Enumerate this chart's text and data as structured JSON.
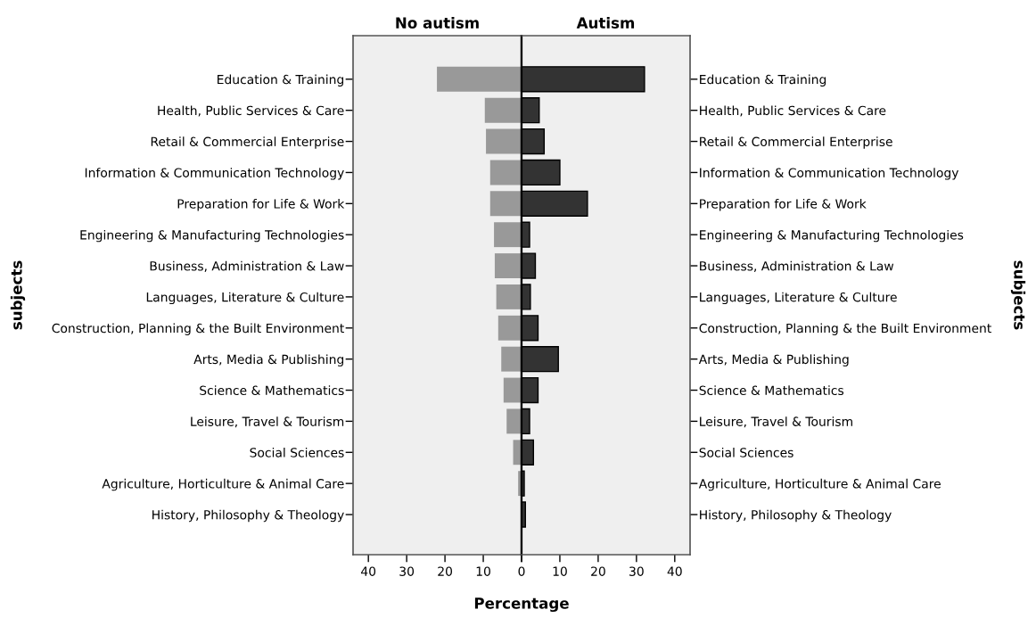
{
  "chart_data": [
    {
      "type": "bar",
      "orientation": "horizontal",
      "title": "No autism",
      "ylabel": "subjects",
      "xlabel": "Percentage",
      "categories": [
        "Education & Training",
        "Health, Public Services & Care",
        "Retail & Commercial Enterprise",
        "Information & Communication Technology",
        "Preparation for Life & Work",
        "Engineering & Manufacturing Technologies",
        "Business, Administration & Law",
        "Languages, Literature & Culture",
        "Construction, Planning & the Built Environment",
        "Arts, Media & Publishing",
        "Science & Mathematics",
        "Leisure, Travel & Tourism",
        "Social Sciences",
        "Agriculture, Horticulture & Animal Care",
        "History, Philosophy & Theology"
      ],
      "values": [
        22.1,
        9.6,
        9.3,
        8.2,
        8.2,
        7.2,
        7.0,
        6.6,
        6.1,
        5.3,
        4.7,
        3.9,
        2.2,
        0.9,
        null
      ],
      "color": "#999999",
      "xlim": [
        44,
        0
      ],
      "xticks": [
        40,
        30,
        20,
        10,
        0
      ],
      "grid": false,
      "legend": false
    },
    {
      "type": "bar",
      "orientation": "horizontal",
      "title": "Autism",
      "ylabel": "subjects",
      "categories": [
        "Education & Training",
        "Health, Public Services & Care",
        "Retail & Commercial Enterprise",
        "Information & Communication Technology",
        "Preparation for Life & Work",
        "Engineering & Manufacturing Technologies",
        "Business, Administration & Law",
        "Languages, Literature & Culture",
        "Construction, Planning & the Built Environment",
        "Arts, Media & Publishing",
        "Science & Mathematics",
        "Leisure, Travel & Tourism",
        "Social Sciences",
        "Agriculture, Horticulture & Animal Care",
        "History, Philosophy & Theology"
      ],
      "values": [
        32.1,
        4.6,
        5.9,
        10.0,
        17.2,
        2.1,
        3.6,
        2.3,
        4.3,
        9.6,
        4.3,
        2.1,
        3.1,
        0.7,
        1.0
      ],
      "color": "#333333",
      "xlim": [
        0,
        44
      ],
      "xticks": [
        {
          "value": 0,
          "label": null
        },
        10,
        20,
        30,
        40
      ],
      "grid": false,
      "legend": false
    }
  ]
}
